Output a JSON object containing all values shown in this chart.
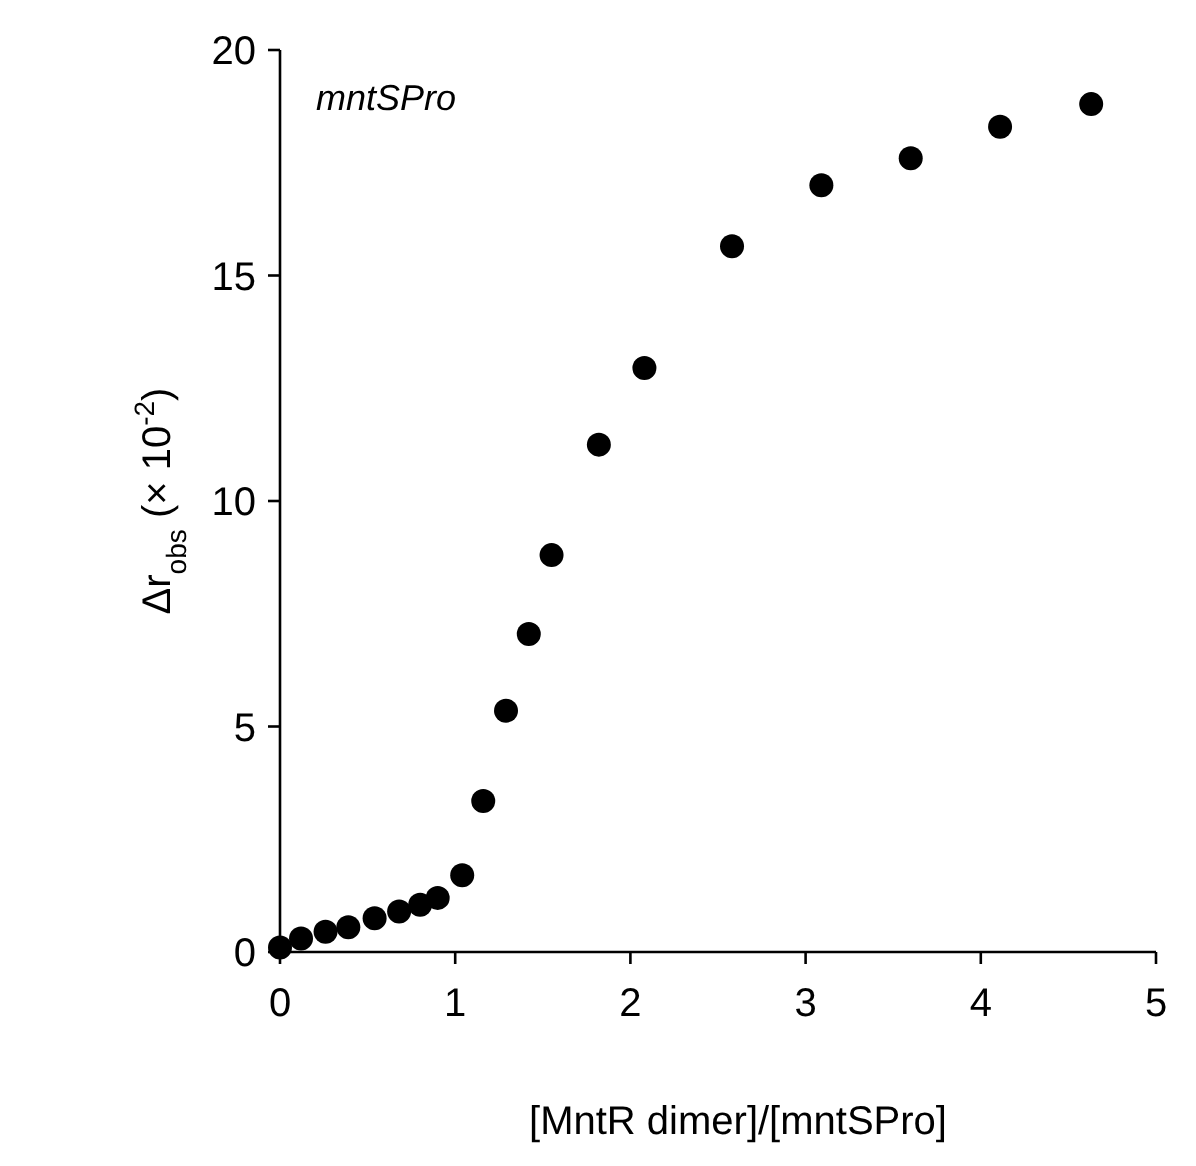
{
  "chart_data": {
    "type": "scatter",
    "xlabel": "[MntR dimer]/[mntSPro]",
    "ylabel": "Δr$_{obs}$ (× 10$^{-2}$)",
    "annotations": [
      "mntSPro"
    ],
    "x": [
      0,
      0.12,
      0.26,
      0.39,
      0.54,
      0.68,
      0.8,
      0.9,
      1.04,
      1.16,
      1.29,
      1.42,
      1.55,
      1.82,
      2.08,
      2.58,
      3.09,
      3.6,
      4.11,
      4.63
    ],
    "series": [
      {
        "color": "#000000",
        "values": [
          0.1,
          0.3,
          0.45,
          0.55,
          0.75,
          0.9,
          1.05,
          1.2,
          1.7,
          3.35,
          5.35,
          7.05,
          8.8,
          11.25,
          12.95,
          15.65,
          17.0,
          17.6,
          18.3,
          18.8
        ]
      }
    ],
    "xlim": [
      0,
      5
    ],
    "xticks": [
      0,
      1,
      2,
      3,
      4,
      5
    ],
    "ylim": [
      0,
      20
    ],
    "yticks": [
      0,
      5,
      10,
      15,
      20
    ],
    "marker": "circle"
  }
}
